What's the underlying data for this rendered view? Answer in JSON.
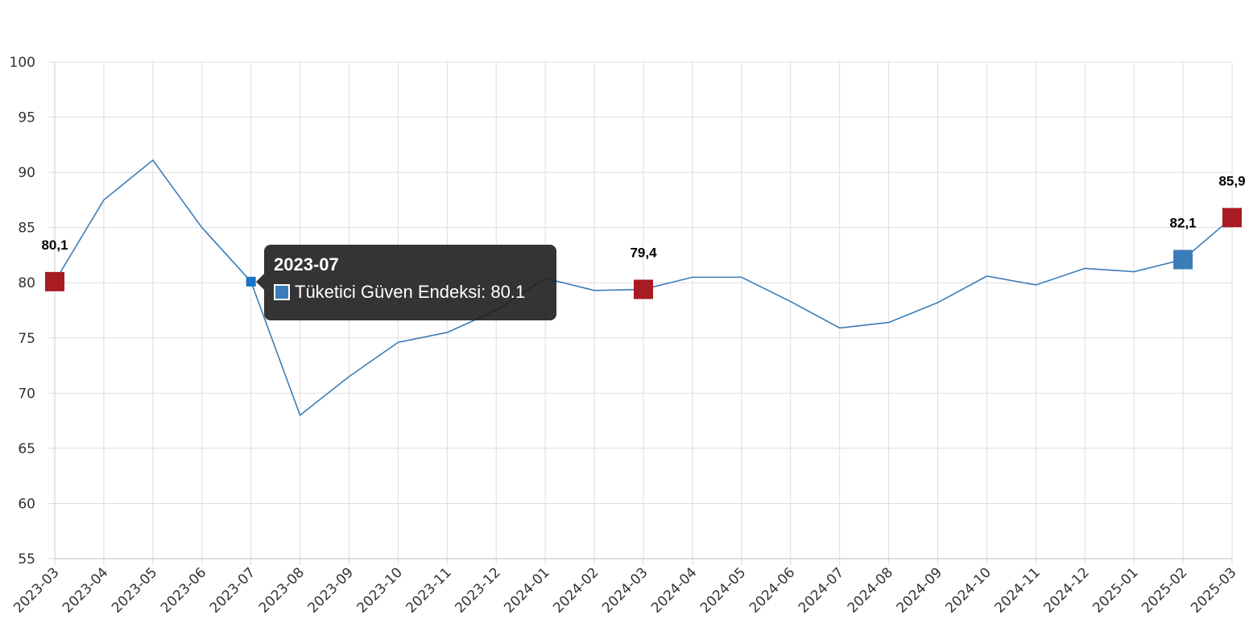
{
  "chart_data": {
    "type": "line",
    "title": "",
    "xlabel": "",
    "ylabel": "",
    "ylim": [
      55,
      100
    ],
    "yticks": [
      55,
      60,
      65,
      70,
      75,
      80,
      85,
      90,
      95,
      100
    ],
    "grid": true,
    "categories": [
      "2023-03",
      "2023-04",
      "2023-05",
      "2023-06",
      "2023-07",
      "2023-08",
      "2023-09",
      "2023-10",
      "2023-11",
      "2023-12",
      "2024-01",
      "2024-02",
      "2024-03",
      "2024-04",
      "2024-05",
      "2024-06",
      "2024-07",
      "2024-08",
      "2024-09",
      "2024-10",
      "2024-11",
      "2024-12",
      "2025-01",
      "2025-02",
      "2025-03"
    ],
    "series": [
      {
        "name": "Tüketici Güven Endeksi",
        "color": "#3a7db8",
        "values": [
          80.1,
          87.5,
          91.1,
          85.0,
          80.1,
          68.0,
          71.5,
          74.6,
          75.5,
          77.5,
          80.4,
          79.3,
          79.4,
          80.5,
          80.5,
          78.3,
          75.9,
          76.4,
          78.2,
          80.6,
          79.8,
          81.3,
          81.0,
          82.1,
          85.9
        ]
      }
    ],
    "highlights": [
      {
        "index": 0,
        "label": "80,1",
        "color": "#a81b22"
      },
      {
        "index": 12,
        "label": "79,4",
        "color": "#a81b22"
      },
      {
        "index": 23,
        "label": "82,1",
        "color": "#3a7db8"
      },
      {
        "index": 24,
        "label": "85,9",
        "color": "#a81b22"
      }
    ],
    "active_index": 4,
    "active_color": "#1a73c4"
  },
  "tooltip": {
    "title": "2023-07",
    "text": "Tüketici Güven Endeksi: 80.1",
    "swatch_color": "#3a7db8"
  }
}
